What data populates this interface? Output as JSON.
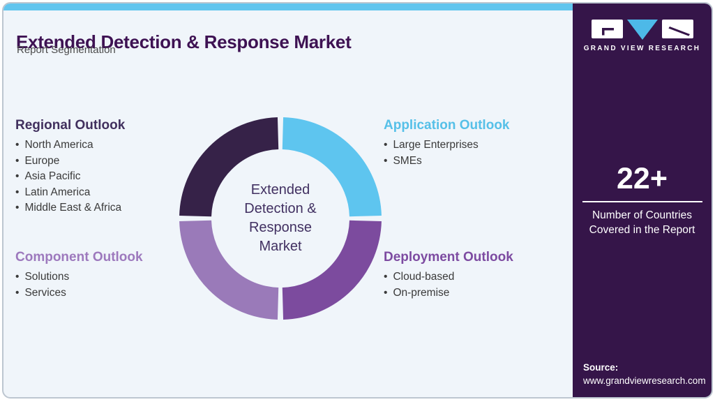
{
  "header": {
    "title": "Extended Detection & Response Market",
    "subtitle": "Report Segmentation"
  },
  "sections": [
    {
      "id": "regional",
      "title": "Regional Outlook",
      "color": "#41305e",
      "items": [
        "North America",
        "Europe",
        "Asia Pacific",
        "Latin America",
        "Middle East & Africa"
      ]
    },
    {
      "id": "application",
      "title": "Application Outlook",
      "color": "#56c0e8",
      "items": [
        "Large Enterprises",
        "SMEs"
      ]
    },
    {
      "id": "component",
      "title": "Component Outlook",
      "color": "#9d79bd",
      "items": [
        "Solutions",
        "Services"
      ]
    },
    {
      "id": "deployment",
      "title": "Deployment Outlook",
      "color": "#7d4ba1",
      "items": [
        "Cloud-based",
        "On-premise"
      ]
    }
  ],
  "chart_data": {
    "type": "donut",
    "title": "Extended Detection & Response Market",
    "center_label_lines": [
      "Extended",
      "Detection &",
      "Response",
      "Market"
    ],
    "legend_position": "none",
    "segments": [
      {
        "id": "application",
        "label": "Application Outlook",
        "value": 25,
        "color": "#5ec5ef",
        "position": "top-right"
      },
      {
        "id": "deployment",
        "label": "Deployment Outlook",
        "value": 25,
        "color": "#7c4b9e",
        "position": "bottom-right"
      },
      {
        "id": "component",
        "label": "Component Outlook",
        "value": 25,
        "color": "#9a7ab9",
        "position": "bottom-left"
      },
      {
        "id": "regional",
        "label": "Regional Outlook",
        "value": 25,
        "color": "#362248",
        "position": "top-left"
      }
    ]
  },
  "sidebar": {
    "brand": "GRAND VIEW RESEARCH",
    "stat": {
      "value": "22+",
      "label": "Number of Countries Covered in the Report"
    },
    "source_label": "Source:",
    "source_url": "www.grandviewresearch.com"
  },
  "colors": {
    "top_bar": "#62c5ee",
    "card_background": "#f0f5fa",
    "sidebar_background": "#351549",
    "title": "#3e1253",
    "logo_blue": "#4db9e8"
  }
}
